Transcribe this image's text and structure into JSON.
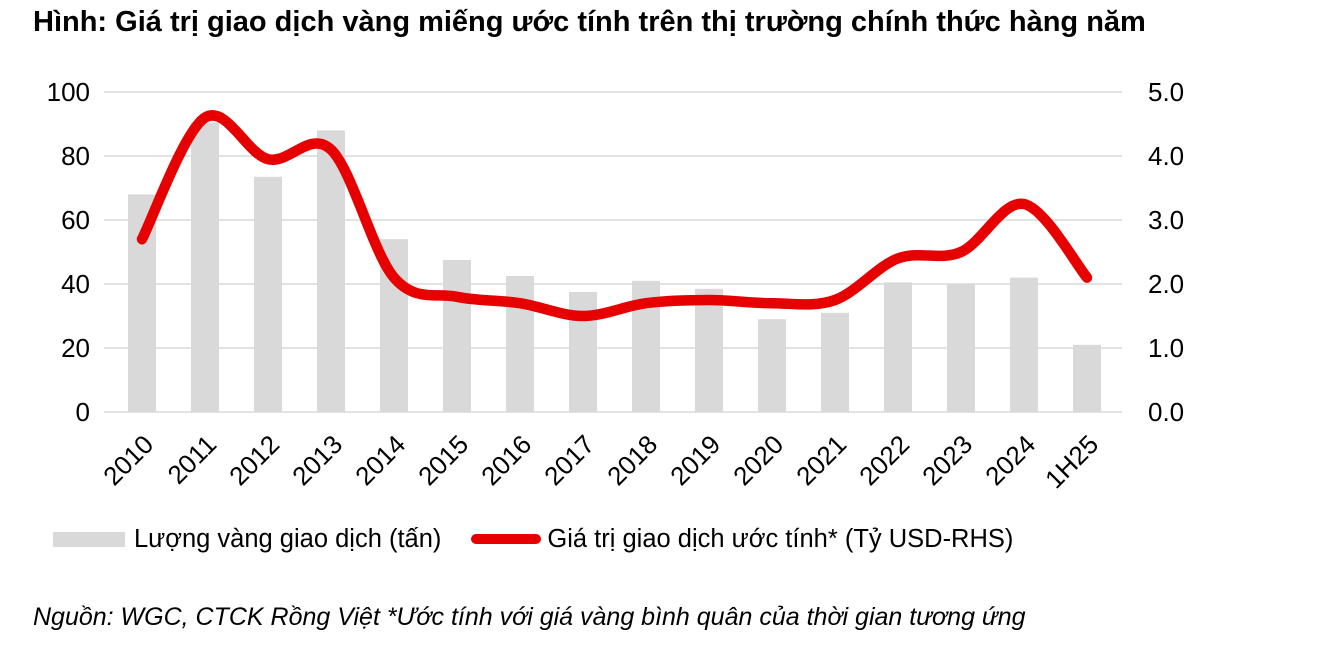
{
  "title": "Hình: Giá trị giao dịch vàng miếng ước tính trên thị trường chính thức hàng năm",
  "source_note": "Nguồn: WGC, CTCK Rồng Việt *Ước tính với giá vàng bình quân của thời gian tương ứng",
  "chart_data": {
    "type": "combo_bar_line",
    "categories": [
      "2010",
      "2011",
      "2012",
      "2013",
      "2014",
      "2015",
      "2016",
      "2017",
      "2018",
      "2019",
      "2020",
      "2021",
      "2022",
      "2023",
      "2024",
      "1H25"
    ],
    "series": [
      {
        "name": "Lượng vàng giao dịch (tấn)",
        "type": "bar",
        "axis": "left",
        "values": [
          68,
          90.5,
          73.5,
          88,
          54,
          47.5,
          42.5,
          37.5,
          41,
          38.5,
          29,
          31,
          40.5,
          40,
          42,
          21
        ]
      },
      {
        "name": "Giá trị giao dịch ước tính* (Tỷ USD-RHS)",
        "type": "line",
        "axis": "right",
        "values": [
          2.7,
          4.6,
          3.95,
          4.1,
          2.1,
          1.8,
          1.7,
          1.5,
          1.7,
          1.75,
          1.7,
          1.75,
          2.4,
          2.5,
          3.25,
          2.1
        ]
      }
    ],
    "left_axis": {
      "min": 0,
      "max": 100,
      "ticks": [
        "100",
        "80",
        "60",
        "40",
        "20",
        "0"
      ]
    },
    "right_axis": {
      "min": 0,
      "max": 5,
      "ticks": [
        "5.0",
        "4.0",
        "3.0",
        "2.0",
        "1.0",
        "0.0"
      ]
    },
    "grid": "horizontal",
    "legend_position": "bottom",
    "colors": {
      "bar": "#d9d9d9",
      "line": "#e60000",
      "grid": "#d9d9d9",
      "text": "#000000"
    }
  }
}
